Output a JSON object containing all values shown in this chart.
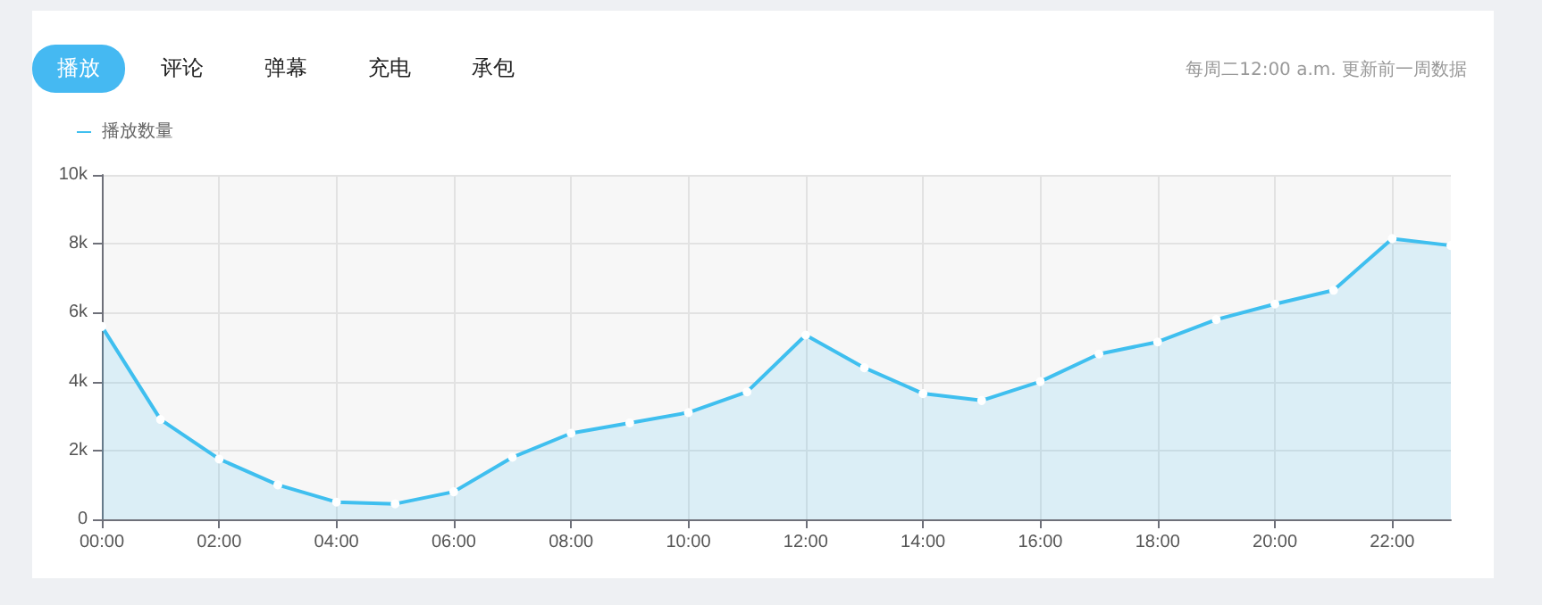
{
  "chart_data": {
    "type": "area",
    "annotations": [
      "播放",
      "评论",
      "弹幕",
      "充电",
      "承包",
      "每周二12:00 a.m. 更新前一周数据"
    ],
    "x": [
      0,
      1,
      2,
      3,
      4,
      5,
      6,
      7,
      8,
      9,
      10,
      11,
      12,
      13,
      14,
      15,
      16,
      17,
      18,
      19,
      20,
      21,
      22,
      23
    ],
    "series": [
      {
        "name": "播放数量",
        "color": "#3fbfef",
        "values": [
          5600,
          2900,
          1750,
          1000,
          500,
          450,
          800,
          1800,
          2500,
          2800,
          3100,
          3700,
          5350,
          4400,
          3650,
          3450,
          4000,
          4800,
          5150,
          5800,
          6250,
          6650,
          8150,
          7950
        ]
      }
    ],
    "xlim": [
      0,
      23
    ],
    "xticks": [
      {
        "value": 0,
        "label": "00:00"
      },
      {
        "value": 2,
        "label": "02:00"
      },
      {
        "value": 4,
        "label": "04:00"
      },
      {
        "value": 6,
        "label": "06:00"
      },
      {
        "value": 8,
        "label": "08:00"
      },
      {
        "value": 10,
        "label": "10:00"
      },
      {
        "value": 12,
        "label": "12:00"
      },
      {
        "value": 14,
        "label": "14:00"
      },
      {
        "value": 16,
        "label": "16:00"
      },
      {
        "value": 18,
        "label": "18:00"
      },
      {
        "value": 20,
        "label": "20:00"
      },
      {
        "value": 22,
        "label": "22:00"
      }
    ],
    "ylim": [
      0,
      10000
    ],
    "yticks": [
      0,
      {
        "value": 2000,
        "label": "2k"
      },
      {
        "value": 4000,
        "label": "4k"
      },
      {
        "value": 6000,
        "label": "6k"
      },
      {
        "value": 8000,
        "label": "8k"
      },
      {
        "value": 10000,
        "label": "10k"
      }
    ],
    "grid": true,
    "legend": "top left",
    "marker": "circle",
    "line_style": "solid"
  }
}
